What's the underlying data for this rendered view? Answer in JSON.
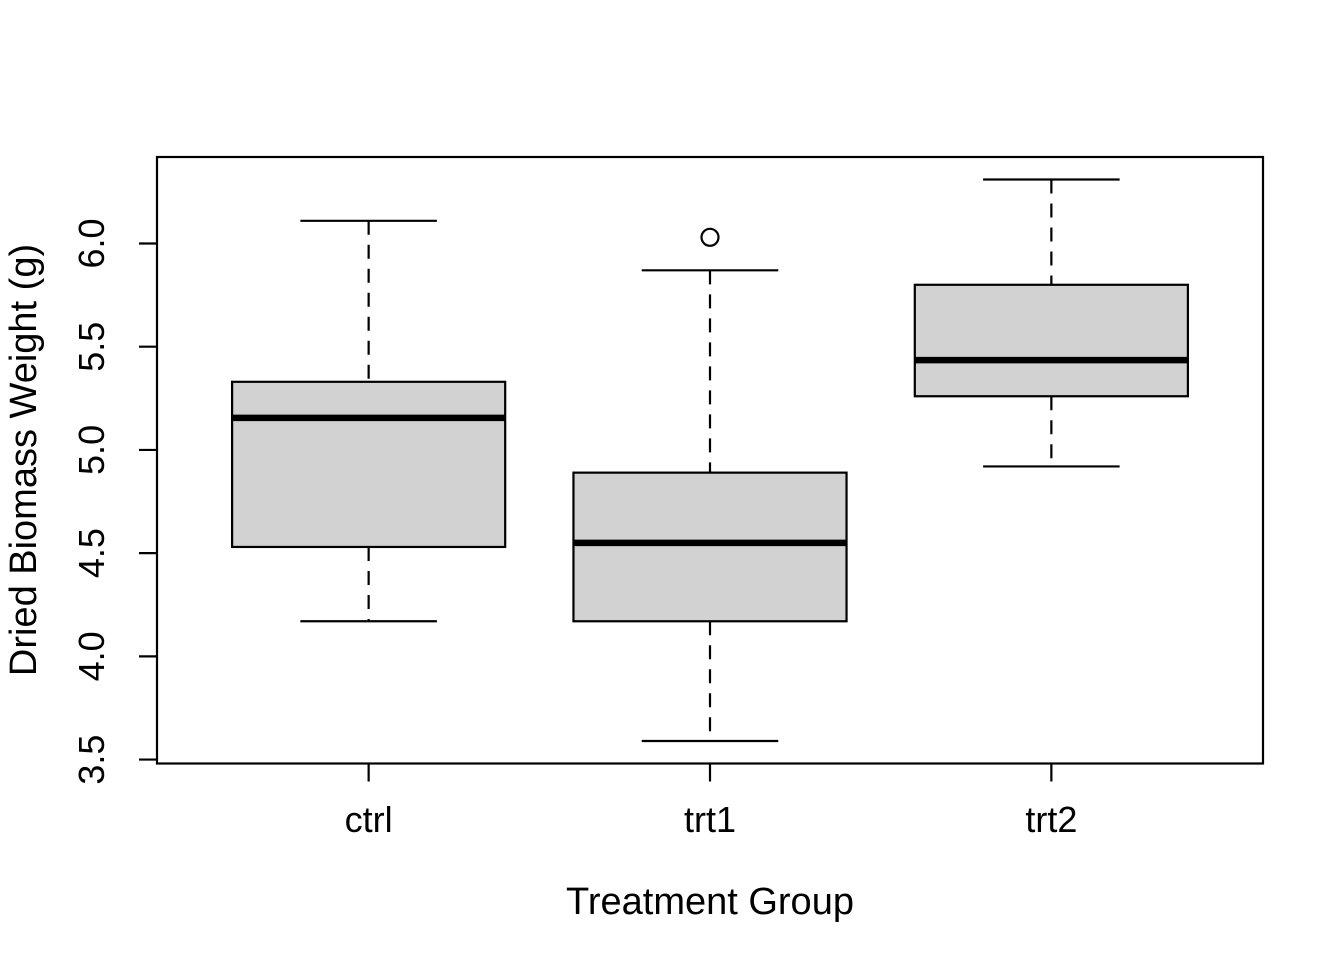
{
  "chart_data": {
    "type": "boxplot",
    "title": "",
    "xlabel": "Treatment Group",
    "ylabel": "Dried Biomass Weight (g)",
    "categories": [
      "ctrl",
      "trt1",
      "trt2"
    ],
    "y_ticks": [
      3.5,
      4.0,
      4.5,
      5.0,
      5.5,
      6.0
    ],
    "ylim": [
      3.481,
      6.419
    ],
    "xlim": [
      0.38,
      3.62
    ],
    "grid": "off",
    "legend": "none",
    "series": [
      {
        "group": "ctrl",
        "whisker_low": 4.17,
        "q1": 4.53,
        "median": 5.155,
        "q3": 5.33,
        "whisker_high": 6.11,
        "outliers": []
      },
      {
        "group": "trt1",
        "whisker_low": 3.59,
        "q1": 4.17,
        "median": 4.55,
        "q3": 4.89,
        "whisker_high": 5.87,
        "outliers": [
          6.03
        ]
      },
      {
        "group": "trt2",
        "whisker_low": 4.92,
        "q1": 5.26,
        "median": 5.435,
        "q3": 5.8,
        "whisker_high": 6.31,
        "outliers": []
      }
    ],
    "style": {
      "box_fill": "#d2d2d2",
      "stroke": "#000000",
      "background": "#ffffff",
      "whisker_linetype": "dashed"
    }
  }
}
